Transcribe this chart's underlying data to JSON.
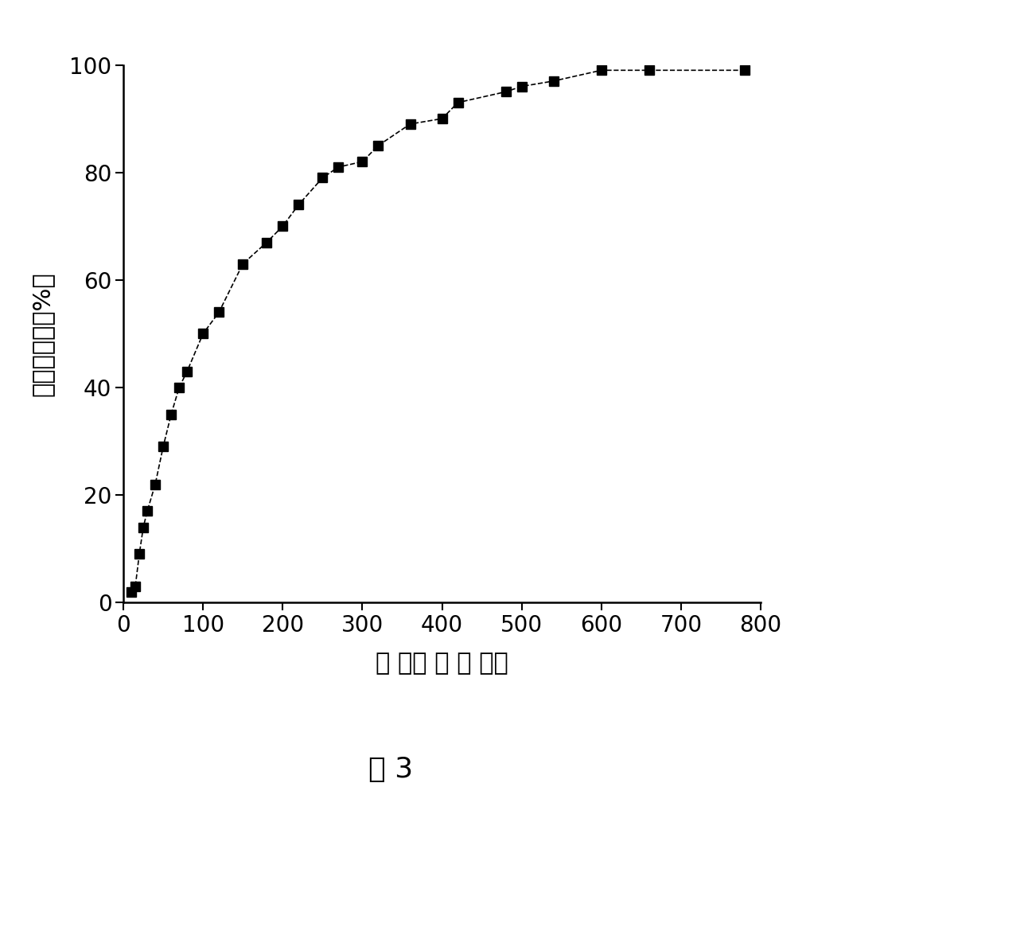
{
  "x": [
    10,
    15,
    20,
    25,
    30,
    40,
    50,
    60,
    70,
    80,
    100,
    120,
    150,
    180,
    200,
    220,
    250,
    270,
    300,
    320,
    360,
    400,
    420,
    480,
    500,
    540,
    600,
    660,
    780
  ],
  "y": [
    2,
    3,
    9,
    14,
    17,
    22,
    29,
    35,
    40,
    43,
    50,
    54,
    63,
    67,
    70,
    74,
    79,
    81,
    82,
    85,
    89,
    90,
    93,
    95,
    96,
    97,
    99,
    99,
    99
  ],
  "xlabel": "时 间： （ 分 钟）",
  "ylabel": "累积释放量（%）",
  "caption": "图 3",
  "xlim": [
    0,
    800
  ],
  "ylim": [
    0,
    100
  ],
  "xticks": [
    0,
    100,
    200,
    300,
    400,
    500,
    600,
    700,
    800
  ],
  "yticks": [
    0,
    20,
    40,
    60,
    80,
    100
  ],
  "line_color": "#000000",
  "marker_color": "#000000",
  "background_color": "#ffffff",
  "line_style": "--",
  "marker": "s",
  "marker_size": 9,
  "line_width": 1.2,
  "title_fontsize": 26,
  "label_fontsize": 22,
  "tick_fontsize": 20
}
